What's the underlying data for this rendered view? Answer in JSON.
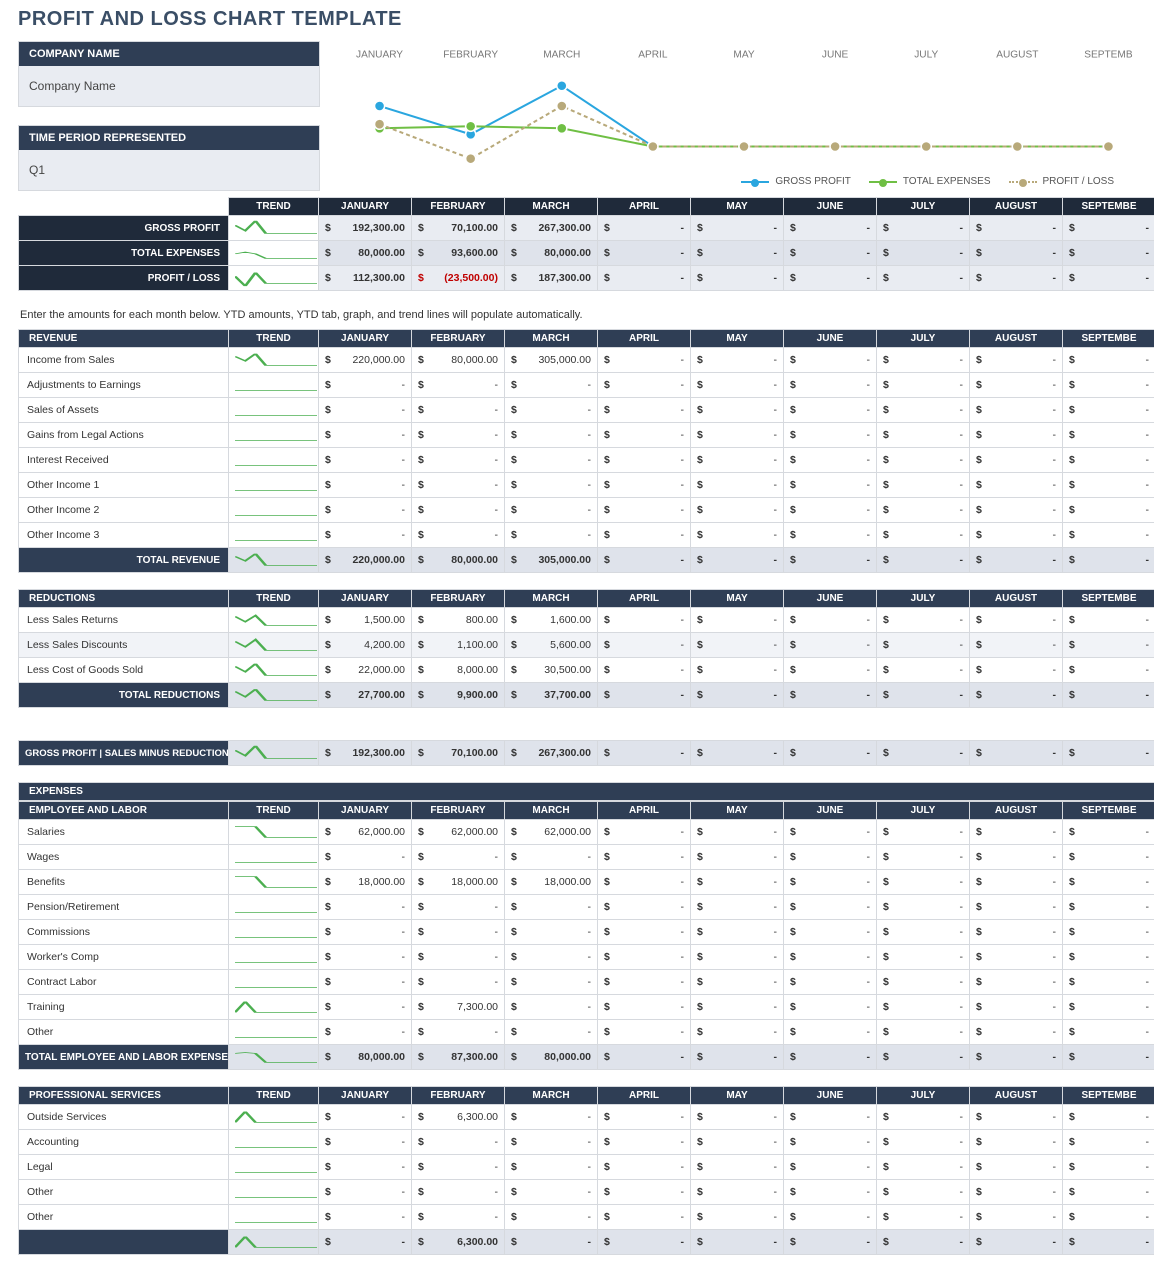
{
  "title": "PROFIT AND LOSS CHART TEMPLATE",
  "meta": {
    "company_label": "COMPANY NAME",
    "company_value": "Company Name",
    "period_label": "TIME PERIOD REPRESENTED",
    "period_value": "Q1"
  },
  "months": [
    "JANUARY",
    "FEBRUARY",
    "MARCH",
    "APRIL",
    "MAY",
    "JUNE",
    "JULY",
    "AUGUST",
    "SEPTEMBE"
  ],
  "chart": {
    "month_labels": [
      "JANUARY",
      "FEBRUARY",
      "MARCH",
      "APRIL",
      "MAY",
      "JUNE",
      "JULY",
      "AUGUST",
      "SEPTEMB"
    ],
    "x": [
      45,
      135,
      225,
      315,
      405,
      495,
      585,
      675,
      765
    ],
    "series": [
      {
        "name": "GROSS PROFIT",
        "color": "#2aa6df",
        "y": [
          40,
          68,
          20,
          80,
          80,
          80,
          80,
          80,
          80
        ],
        "dash": "0"
      },
      {
        "name": "TOTAL EXPENSES",
        "color": "#6fbf44",
        "y": [
          62,
          60,
          62,
          80,
          80,
          80,
          80,
          80,
          80
        ],
        "dash": "0"
      },
      {
        "name": "PROFIT / LOSS",
        "color": "#b8a97a",
        "y": [
          58,
          92,
          40,
          80,
          80,
          80,
          80,
          80,
          80
        ],
        "dash": "4,3"
      }
    ],
    "legend": [
      "GROSS PROFIT",
      "TOTAL EXPENSES",
      "PROFIT / LOSS"
    ]
  },
  "summary": {
    "header_trend": "TREND",
    "rows": [
      {
        "label": "GROSS PROFIT",
        "trend": [
          35,
          65,
          10,
          80,
          80,
          80,
          80,
          80,
          80
        ],
        "vals": [
          "192,300.00",
          "70,100.00",
          "267,300.00",
          "-",
          "-",
          "-",
          "-",
          "-",
          "-"
        ]
      },
      {
        "label": "TOTAL EXPENSES",
        "trend": [
          55,
          45,
          55,
          80,
          80,
          80,
          80,
          80,
          80
        ],
        "vals": [
          "80,000.00",
          "93,600.00",
          "80,000.00",
          "-",
          "-",
          "-",
          "-",
          "-",
          "-"
        ]
      },
      {
        "label": "PROFIT / LOSS",
        "trend": [
          40,
          95,
          20,
          80,
          80,
          80,
          80,
          80,
          80
        ],
        "vals": [
          "112,300.00",
          "(23,500.00)",
          "187,300.00",
          "-",
          "-",
          "-",
          "-",
          "-",
          "-"
        ],
        "neg_idx": [
          1
        ]
      }
    ]
  },
  "instruction": "Enter the amounts for each month below. YTD amounts, YTD tab, graph, and trend lines will populate automatically.",
  "sections": [
    {
      "id": "revenue",
      "header": "REVENUE",
      "rows": [
        {
          "label": "Income from Sales",
          "trend": [
            30,
            55,
            15,
            80,
            80,
            80,
            80,
            80,
            80
          ],
          "vals": [
            "220,000.00",
            "80,000.00",
            "305,000.00",
            "-",
            "-",
            "-",
            "-",
            "-",
            "-"
          ]
        },
        {
          "label": "Adjustments to Earnings",
          "trend": [
            80,
            80,
            80,
            80,
            80,
            80,
            80,
            80,
            80
          ],
          "vals": [
            "-",
            "-",
            "-",
            "-",
            "-",
            "-",
            "-",
            "-",
            "-"
          ]
        },
        {
          "label": "Sales of Assets",
          "trend": [
            80,
            80,
            80,
            80,
            80,
            80,
            80,
            80,
            80
          ],
          "vals": [
            "-",
            "-",
            "-",
            "-",
            "-",
            "-",
            "-",
            "-",
            "-"
          ]
        },
        {
          "label": "Gains from Legal Actions",
          "trend": [
            80,
            80,
            80,
            80,
            80,
            80,
            80,
            80,
            80
          ],
          "vals": [
            "-",
            "-",
            "-",
            "-",
            "-",
            "-",
            "-",
            "-",
            "-"
          ]
        },
        {
          "label": "Interest Received",
          "trend": [
            80,
            80,
            80,
            80,
            80,
            80,
            80,
            80,
            80
          ],
          "vals": [
            "-",
            "-",
            "-",
            "-",
            "-",
            "-",
            "-",
            "-",
            "-"
          ]
        },
        {
          "label": "Other Income 1",
          "trend": [
            80,
            80,
            80,
            80,
            80,
            80,
            80,
            80,
            80
          ],
          "vals": [
            "-",
            "-",
            "-",
            "-",
            "-",
            "-",
            "-",
            "-",
            "-"
          ]
        },
        {
          "label": "Other Income 2",
          "trend": [
            80,
            80,
            80,
            80,
            80,
            80,
            80,
            80,
            80
          ],
          "vals": [
            "-",
            "-",
            "-",
            "-",
            "-",
            "-",
            "-",
            "-",
            "-"
          ]
        },
        {
          "label": "Other Income 3",
          "trend": [
            80,
            80,
            80,
            80,
            80,
            80,
            80,
            80,
            80
          ],
          "vals": [
            "-",
            "-",
            "-",
            "-",
            "-",
            "-",
            "-",
            "-",
            "-"
          ]
        }
      ],
      "total": {
        "label": "TOTAL REVENUE",
        "trend": [
          30,
          55,
          15,
          80,
          80,
          80,
          80,
          80,
          80
        ],
        "vals": [
          "220,000.00",
          "80,000.00",
          "305,000.00",
          "-",
          "-",
          "-",
          "-",
          "-",
          "-"
        ]
      }
    },
    {
      "id": "reductions",
      "header": "REDUCTIONS",
      "rows": [
        {
          "label": "Less Sales Returns",
          "trend": [
            30,
            60,
            25,
            80,
            80,
            80,
            80,
            80,
            80
          ],
          "vals": [
            "1,500.00",
            "800.00",
            "1,600.00",
            "-",
            "-",
            "-",
            "-",
            "-",
            "-"
          ]
        },
        {
          "label": "Less Sales Discounts",
          "trend": [
            30,
            60,
            20,
            80,
            80,
            80,
            80,
            80,
            80
          ],
          "vals": [
            "4,200.00",
            "1,100.00",
            "5,600.00",
            "-",
            "-",
            "-",
            "-",
            "-",
            "-"
          ],
          "shade": true
        },
        {
          "label": "Less Cost of Goods Sold",
          "trend": [
            30,
            60,
            15,
            80,
            80,
            80,
            80,
            80,
            80
          ],
          "vals": [
            "22,000.00",
            "8,000.00",
            "30,500.00",
            "-",
            "-",
            "-",
            "-",
            "-",
            "-"
          ]
        }
      ],
      "total": {
        "label": "TOTAL REDUCTIONS",
        "trend": [
          30,
          60,
          18,
          80,
          80,
          80,
          80,
          80,
          80
        ],
        "vals": [
          "27,700.00",
          "9,900.00",
          "37,700.00",
          "-",
          "-",
          "-",
          "-",
          "-",
          "-"
        ]
      }
    }
  ],
  "gross_profit_row": {
    "label": "GROSS PROFIT   |   SALES MINUS REDUCTIONS",
    "trend": [
      35,
      65,
      10,
      80,
      80,
      80,
      80,
      80,
      80
    ],
    "vals": [
      "192,300.00",
      "70,100.00",
      "267,300.00",
      "-",
      "-",
      "-",
      "-",
      "-",
      "-"
    ]
  },
  "expenses": {
    "header": "EXPENSES",
    "subs": [
      {
        "header": "EMPLOYEE AND LABOR",
        "rows": [
          {
            "label": "Salaries",
            "trend": [
              20,
              20,
              20,
              80,
              80,
              80,
              80,
              80,
              80
            ],
            "vals": [
              "62,000.00",
              "62,000.00",
              "62,000.00",
              "-",
              "-",
              "-",
              "-",
              "-",
              "-"
            ]
          },
          {
            "label": "Wages",
            "trend": [
              80,
              80,
              80,
              80,
              80,
              80,
              80,
              80,
              80
            ],
            "vals": [
              "-",
              "-",
              "-",
              "-",
              "-",
              "-",
              "-",
              "-",
              "-"
            ]
          },
          {
            "label": "Benefits",
            "trend": [
              20,
              20,
              20,
              80,
              80,
              80,
              80,
              80,
              80
            ],
            "vals": [
              "18,000.00",
              "18,000.00",
              "18,000.00",
              "-",
              "-",
              "-",
              "-",
              "-",
              "-"
            ]
          },
          {
            "label": "Pension/Retirement",
            "trend": [
              80,
              80,
              80,
              80,
              80,
              80,
              80,
              80,
              80
            ],
            "vals": [
              "-",
              "-",
              "-",
              "-",
              "-",
              "-",
              "-",
              "-",
              "-"
            ]
          },
          {
            "label": "Commissions",
            "trend": [
              80,
              80,
              80,
              80,
              80,
              80,
              80,
              80,
              80
            ],
            "vals": [
              "-",
              "-",
              "-",
              "-",
              "-",
              "-",
              "-",
              "-",
              "-"
            ]
          },
          {
            "label": "Worker's Comp",
            "trend": [
              80,
              80,
              80,
              80,
              80,
              80,
              80,
              80,
              80
            ],
            "vals": [
              "-",
              "-",
              "-",
              "-",
              "-",
              "-",
              "-",
              "-",
              "-"
            ]
          },
          {
            "label": "Contract Labor",
            "trend": [
              80,
              80,
              80,
              80,
              80,
              80,
              80,
              80,
              80
            ],
            "vals": [
              "-",
              "-",
              "-",
              "-",
              "-",
              "-",
              "-",
              "-",
              "-"
            ]
          },
          {
            "label": "Training",
            "trend": [
              80,
              20,
              80,
              80,
              80,
              80,
              80,
              80,
              80
            ],
            "vals": [
              "-",
              "7,300.00",
              "-",
              "-",
              "-",
              "-",
              "-",
              "-",
              "-"
            ]
          },
          {
            "label": "Other",
            "trend": [
              80,
              80,
              80,
              80,
              80,
              80,
              80,
              80,
              80
            ],
            "vals": [
              "-",
              "-",
              "-",
              "-",
              "-",
              "-",
              "-",
              "-",
              "-"
            ]
          }
        ],
        "total": {
          "label": "TOTAL EMPLOYEE AND LABOR EXPENSE",
          "trend": [
            30,
            25,
            30,
            80,
            80,
            80,
            80,
            80,
            80
          ],
          "vals": [
            "80,000.00",
            "87,300.00",
            "80,000.00",
            "-",
            "-",
            "-",
            "-",
            "-",
            "-"
          ]
        }
      },
      {
        "header": "PROFESSIONAL SERVICES",
        "rows": [
          {
            "label": "Outside Services",
            "trend": [
              80,
              20,
              80,
              80,
              80,
              80,
              80,
              80,
              80
            ],
            "vals": [
              "-",
              "6,300.00",
              "-",
              "-",
              "-",
              "-",
              "-",
              "-",
              "-"
            ]
          },
          {
            "label": "Accounting",
            "trend": [
              80,
              80,
              80,
              80,
              80,
              80,
              80,
              80,
              80
            ],
            "vals": [
              "-",
              "-",
              "-",
              "-",
              "-",
              "-",
              "-",
              "-",
              "-"
            ]
          },
          {
            "label": "Legal",
            "trend": [
              80,
              80,
              80,
              80,
              80,
              80,
              80,
              80,
              80
            ],
            "vals": [
              "-",
              "-",
              "-",
              "-",
              "-",
              "-",
              "-",
              "-",
              "-"
            ]
          },
          {
            "label": "Other",
            "trend": [
              80,
              80,
              80,
              80,
              80,
              80,
              80,
              80,
              80
            ],
            "vals": [
              "-",
              "-",
              "-",
              "-",
              "-",
              "-",
              "-",
              "-",
              "-"
            ]
          },
          {
            "label": "Other",
            "trend": [
              80,
              80,
              80,
              80,
              80,
              80,
              80,
              80,
              80
            ],
            "vals": [
              "-",
              "-",
              "-",
              "-",
              "-",
              "-",
              "-",
              "-",
              "-"
            ]
          }
        ],
        "total": {
          "label": "",
          "trend": [
            80,
            20,
            80,
            80,
            80,
            80,
            80,
            80,
            80
          ],
          "vals": [
            "-",
            "6,300.00",
            "-",
            "-",
            "-",
            "-",
            "-",
            "-",
            "-"
          ]
        }
      }
    ]
  },
  "colors": {
    "trend_stroke": "#4caf50",
    "dark": "#2f3e55",
    "darker": "#1f2a3a",
    "shade": "#e9ecf2"
  }
}
